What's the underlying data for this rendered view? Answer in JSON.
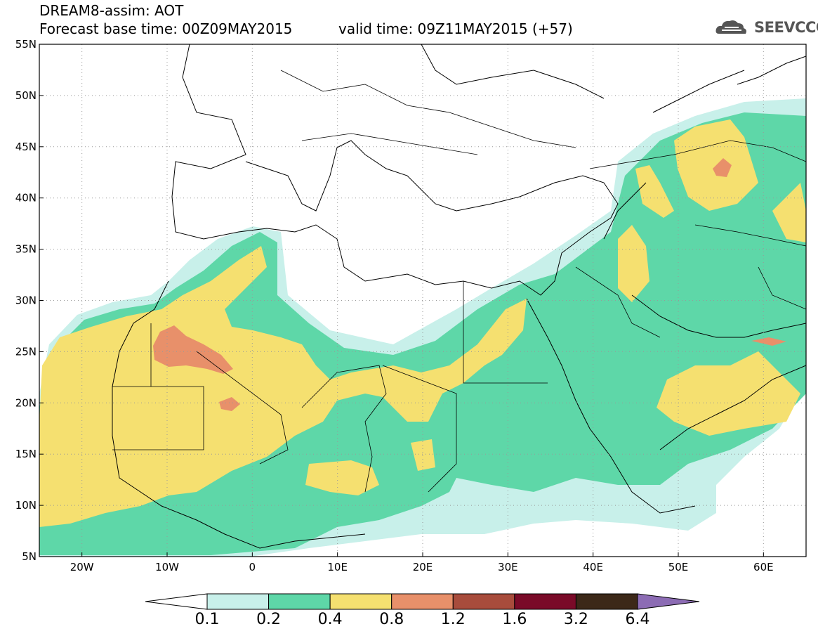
{
  "header": {
    "title": "DREAM8-assim: AOT",
    "base_time": "Forecast base time: 00Z09MAY2015",
    "valid_time": "valid time: 09Z11MAY2015 (+57)"
  },
  "logo": {
    "text": "SEEVCCC",
    "icon": "cloud-logo-icon"
  },
  "map": {
    "lon_range": [
      -25,
      65
    ],
    "lat_range": [
      5,
      55
    ],
    "lon_ticks": [
      "20W",
      "10W",
      "0",
      "10E",
      "20E",
      "30E",
      "40E",
      "50E",
      "60E"
    ],
    "lat_ticks": [
      "55N",
      "50N",
      "45N",
      "40N",
      "35N",
      "30N",
      "25N",
      "20N",
      "15N",
      "10N",
      "5N"
    ],
    "gridlines": "dotted"
  },
  "colorbar": {
    "levels": [
      "0.1",
      "0.2",
      "0.4",
      "0.8",
      "1.2",
      "1.6",
      "3.2",
      "6.4"
    ],
    "colors": [
      "#ffffff",
      "#c8f0ea",
      "#5ed7a8",
      "#f5e070",
      "#e8906a",
      "#a84c3c",
      "#7a0a28",
      "#3c2818",
      "#8c6cb4"
    ]
  },
  "legend_colors": {
    "c01": "#c8f0ea",
    "c02": "#5ed7a8",
    "c04": "#f5e070",
    "c08": "#e8906a"
  }
}
